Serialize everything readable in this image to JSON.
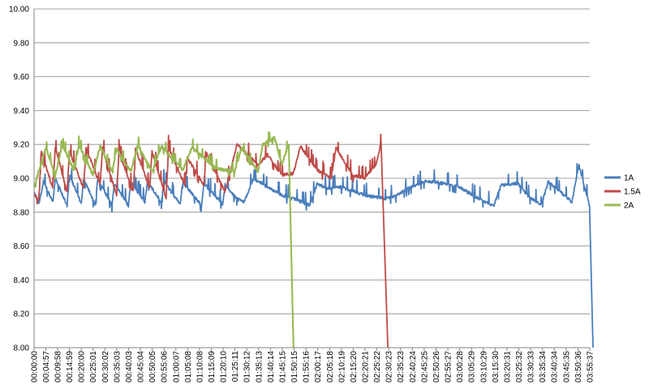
{
  "chart_data": {
    "type": "line",
    "title": "",
    "xlabel": "",
    "ylabel": "",
    "ylim": [
      8.0,
      10.0
    ],
    "y_ticks": [
      "8.00",
      "8.20",
      "8.40",
      "8.60",
      "8.80",
      "9.00",
      "9.20",
      "9.40",
      "9.60",
      "9.80",
      "10.00"
    ],
    "x_ticks": [
      "00:00:00",
      "00:04:57",
      "00:09:58",
      "00:14:59",
      "00:20:00",
      "00:25:01",
      "00:30:02",
      "00:35:03",
      "00:40:03",
      "00:45:04",
      "00:50:05",
      "00:55:06",
      "01:00:07",
      "01:05:08",
      "01:10:08",
      "01:15:09",
      "01:20:10",
      "01:25:11",
      "01:30:12",
      "01:35:13",
      "01:40:14",
      "01:45:15",
      "01:50:15",
      "01:55:16",
      "02:00:17",
      "02:05:18",
      "02:10:19",
      "02:15:20",
      "02:20:21",
      "02:25:22",
      "02:30:23",
      "02:35:23",
      "02:40:24",
      "02:45:25",
      "02:50:26",
      "02:55:27",
      "03:00:28",
      "03:05:29",
      "03:10:29",
      "03:15:30",
      "03:20:31",
      "03:25:32",
      "03:30:33",
      "03:35:34",
      "03:40:34",
      "03:45:35",
      "03:50:36",
      "03:55:37"
    ],
    "grid": true,
    "legend_position": "right",
    "series": [
      {
        "name": "1A",
        "color": "#4a7ebb",
        "points": [
          [
            "00:00:00",
            8.92
          ],
          [
            "00:02:00",
            8.85
          ],
          [
            "00:04:00",
            8.98
          ],
          [
            "00:08:00",
            8.86
          ],
          [
            "00:09:00",
            9.0
          ],
          [
            "00:14:00",
            8.84
          ],
          [
            "00:15:00",
            9.02
          ],
          [
            "00:20:00",
            8.85
          ],
          [
            "00:21:00",
            9.0
          ],
          [
            "00:26:00",
            8.84
          ],
          [
            "00:27:00",
            9.0
          ],
          [
            "00:33:00",
            8.84
          ],
          [
            "00:34:00",
            8.97
          ],
          [
            "00:40:00",
            8.84
          ],
          [
            "00:41:00",
            8.98
          ],
          [
            "00:47:00",
            8.86
          ],
          [
            "00:48:00",
            8.98
          ],
          [
            "00:54:00",
            8.86
          ],
          [
            "00:55:00",
            8.98
          ],
          [
            "01:02:00",
            8.85
          ],
          [
            "01:03:00",
            8.98
          ],
          [
            "01:11:00",
            8.84
          ],
          [
            "01:12:00",
            8.97
          ],
          [
            "01:20:00",
            8.85
          ],
          [
            "01:21:00",
            8.96
          ],
          [
            "01:26:00",
            8.88
          ],
          [
            "01:29:00",
            8.86
          ],
          [
            "01:33:00",
            9.0
          ],
          [
            "01:45:00",
            8.9
          ],
          [
            "01:52:00",
            8.87
          ],
          [
            "01:57:00",
            8.84
          ],
          [
            "02:00:00",
            8.97
          ],
          [
            "02:04:00",
            8.94
          ],
          [
            "02:10:00",
            8.95
          ],
          [
            "02:20:00",
            8.9
          ],
          [
            "02:29:00",
            8.88
          ],
          [
            "02:34:00",
            8.9
          ],
          [
            "02:36:00",
            8.92
          ],
          [
            "02:40:00",
            8.95
          ],
          [
            "02:45:00",
            8.98
          ],
          [
            "02:50:00",
            8.98
          ],
          [
            "03:00:00",
            8.95
          ],
          [
            "03:10:00",
            8.87
          ],
          [
            "03:15:00",
            8.84
          ],
          [
            "03:18:00",
            8.96
          ],
          [
            "03:25:00",
            8.97
          ],
          [
            "03:30:00",
            8.89
          ],
          [
            "03:35:00",
            8.84
          ],
          [
            "03:38:00",
            8.98
          ],
          [
            "03:45:00",
            8.9
          ],
          [
            "03:48:00",
            8.86
          ],
          [
            "03:51:00",
            9.08
          ],
          [
            "03:55:30",
            8.84
          ],
          [
            "03:57:00",
            8.0
          ]
        ]
      },
      {
        "name": "1.5A",
        "color": "#be4b48",
        "points": [
          [
            "00:00:00",
            8.9
          ],
          [
            "00:02:00",
            8.88
          ],
          [
            "00:03:00",
            9.16
          ],
          [
            "00:08:00",
            8.94
          ],
          [
            "00:09:00",
            9.18
          ],
          [
            "00:14:00",
            8.92
          ],
          [
            "00:15:00",
            9.16
          ],
          [
            "00:21:00",
            8.94
          ],
          [
            "00:22:00",
            9.18
          ],
          [
            "00:28:00",
            8.96
          ],
          [
            "00:29:00",
            9.18
          ],
          [
            "00:35:00",
            8.9
          ],
          [
            "00:36:00",
            9.16
          ],
          [
            "00:42:00",
            8.92
          ],
          [
            "00:43:00",
            9.18
          ],
          [
            "00:49:00",
            8.94
          ],
          [
            "00:50:00",
            9.16
          ],
          [
            "00:56:00",
            8.88
          ],
          [
            "00:57:00",
            9.18
          ],
          [
            "01:04:00",
            8.96
          ],
          [
            "01:05:00",
            9.12
          ],
          [
            "01:12:00",
            8.96
          ],
          [
            "01:13:00",
            9.15
          ],
          [
            "01:21:00",
            8.92
          ],
          [
            "01:26:00",
            9.2
          ],
          [
            "01:35:00",
            9.08
          ],
          [
            "01:39:00",
            9.14
          ],
          [
            "01:45:00",
            9.02
          ],
          [
            "01:50:00",
            9.03
          ],
          [
            "01:53:00",
            9.19
          ],
          [
            "02:00:00",
            9.05
          ],
          [
            "02:06:00",
            9.0
          ],
          [
            "02:08:00",
            9.18
          ],
          [
            "02:15:00",
            9.02
          ],
          [
            "02:20:00",
            9.0
          ],
          [
            "02:25:00",
            9.08
          ],
          [
            "02:27:00",
            9.2
          ],
          [
            "02:30:00",
            8.0
          ]
        ]
      },
      {
        "name": "2A",
        "color": "#98b954",
        "points": [
          [
            "00:00:00",
            8.95
          ],
          [
            "00:02:00",
            9.04
          ],
          [
            "00:05:00",
            9.18
          ],
          [
            "00:09:00",
            9.02
          ],
          [
            "00:12:00",
            9.2
          ],
          [
            "00:17:00",
            9.04
          ],
          [
            "00:19:00",
            9.2
          ],
          [
            "00:25:00",
            9.02
          ],
          [
            "00:28:00",
            9.19
          ],
          [
            "00:33:00",
            9.04
          ],
          [
            "00:35:00",
            9.17
          ],
          [
            "00:41:00",
            9.04
          ],
          [
            "00:44:00",
            9.2
          ],
          [
            "00:50:00",
            9.04
          ],
          [
            "00:54:00",
            9.19
          ],
          [
            "01:03:00",
            9.05
          ],
          [
            "01:07:00",
            9.18
          ],
          [
            "01:17:00",
            9.06
          ],
          [
            "01:25:00",
            9.04
          ],
          [
            "01:28:00",
            9.18
          ],
          [
            "01:35:00",
            9.04
          ],
          [
            "01:37:00",
            9.2
          ],
          [
            "01:42:00",
            9.24
          ],
          [
            "01:45:00",
            9.08
          ],
          [
            "01:48:00",
            9.2
          ],
          [
            "01:50:00",
            8.0
          ]
        ]
      }
    ]
  }
}
